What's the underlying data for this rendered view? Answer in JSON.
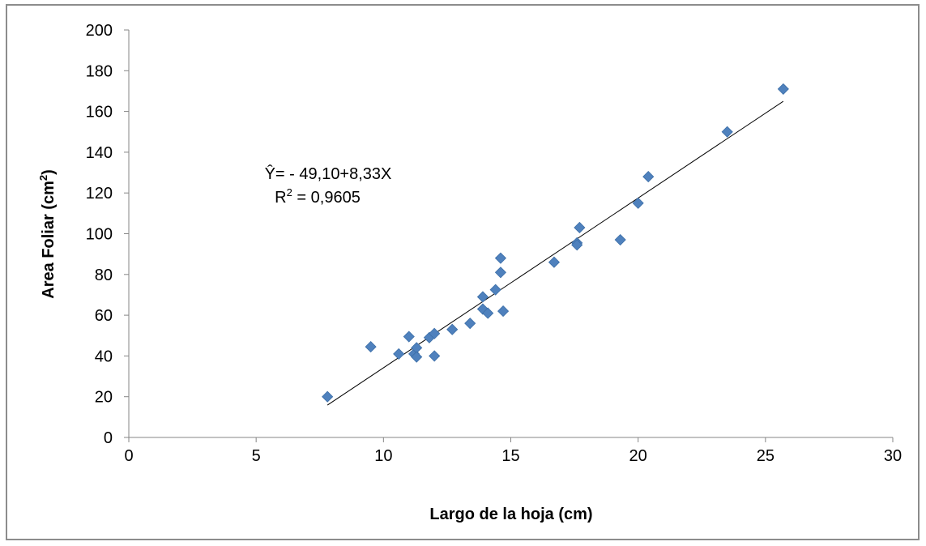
{
  "chart_data": {
    "type": "scatter",
    "xlabel": "Largo de la hoja (cm)",
    "ylabel_main": "Area Foliar (cm",
    "ylabel_sup": "2",
    "ylabel_end": ")",
    "xlim": [
      0,
      30
    ],
    "ylim": [
      0,
      200
    ],
    "x_ticks": [
      0,
      5,
      10,
      15,
      20,
      25,
      30
    ],
    "y_ticks": [
      0,
      20,
      40,
      60,
      80,
      100,
      120,
      140,
      160,
      180,
      200
    ],
    "grid": false,
    "legend": "none",
    "marker_color": "#4f81bd",
    "trendline": {
      "x_start": 7.8,
      "x_end": 25.7,
      "intercept": -49.1,
      "slope": 8.33
    },
    "annotation": {
      "equation": "Ŷ= - 49,10+8,33X",
      "r2_main": "R",
      "r2_sup": "2",
      "r2_value": " = 0,9605"
    },
    "points": [
      {
        "x": 7.8,
        "y": 20
      },
      {
        "x": 9.5,
        "y": 44.5
      },
      {
        "x": 10.6,
        "y": 41
      },
      {
        "x": 11.0,
        "y": 49.5
      },
      {
        "x": 11.2,
        "y": 41
      },
      {
        "x": 11.3,
        "y": 44
      },
      {
        "x": 11.3,
        "y": 39.5
      },
      {
        "x": 11.8,
        "y": 49
      },
      {
        "x": 12.0,
        "y": 51
      },
      {
        "x": 12.0,
        "y": 40
      },
      {
        "x": 12.7,
        "y": 53
      },
      {
        "x": 13.4,
        "y": 56
      },
      {
        "x": 13.9,
        "y": 69
      },
      {
        "x": 13.9,
        "y": 63
      },
      {
        "x": 14.1,
        "y": 61
      },
      {
        "x": 14.4,
        "y": 72.5
      },
      {
        "x": 14.6,
        "y": 88
      },
      {
        "x": 14.6,
        "y": 81
      },
      {
        "x": 14.7,
        "y": 62
      },
      {
        "x": 16.7,
        "y": 86
      },
      {
        "x": 17.6,
        "y": 95.5
      },
      {
        "x": 17.6,
        "y": 94.5
      },
      {
        "x": 17.7,
        "y": 103
      },
      {
        "x": 19.3,
        "y": 97
      },
      {
        "x": 20.0,
        "y": 115
      },
      {
        "x": 20.4,
        "y": 128
      },
      {
        "x": 23.5,
        "y": 150
      },
      {
        "x": 25.7,
        "y": 171
      }
    ]
  }
}
